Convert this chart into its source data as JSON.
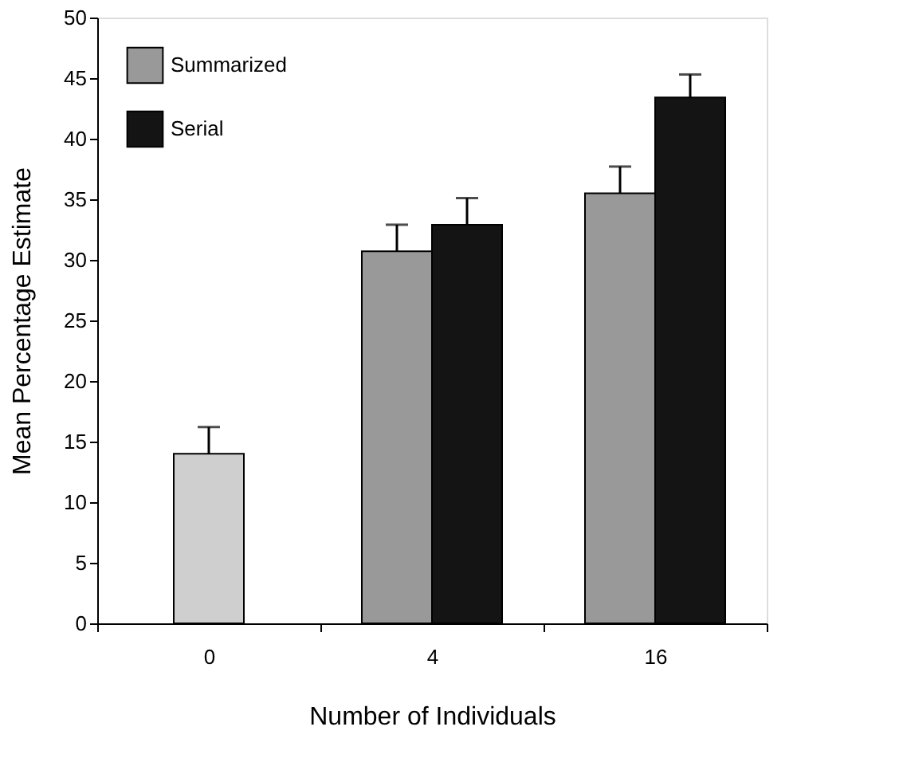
{
  "chart_data": {
    "type": "bar",
    "xlabel": "Number of Individuals",
    "ylabel": "Mean Percentage Estimate",
    "categories": [
      "0",
      "4",
      "16"
    ],
    "series": [
      {
        "color": "#cfcfcf",
        "values": [
          14.0,
          null,
          null
        ],
        "errors": [
          [
            14.0,
            16.2
          ],
          null,
          null
        ]
      },
      {
        "name": "Summarized",
        "color": "#999999",
        "values": [
          null,
          30.7,
          35.5
        ],
        "errors": [
          null,
          [
            30.7,
            32.9
          ],
          [
            35.5,
            37.7
          ]
        ]
      },
      {
        "name": "Serial",
        "color": "#141414",
        "values": [
          null,
          32.9,
          43.4
        ],
        "errors": [
          null,
          [
            32.9,
            35.1
          ],
          [
            43.4,
            45.3
          ]
        ]
      }
    ],
    "ylim": [
      0,
      50
    ],
    "yticks": [
      0,
      5,
      10,
      15,
      20,
      25,
      30,
      35,
      40,
      45,
      50
    ],
    "grid": false,
    "legend": "top left"
  }
}
